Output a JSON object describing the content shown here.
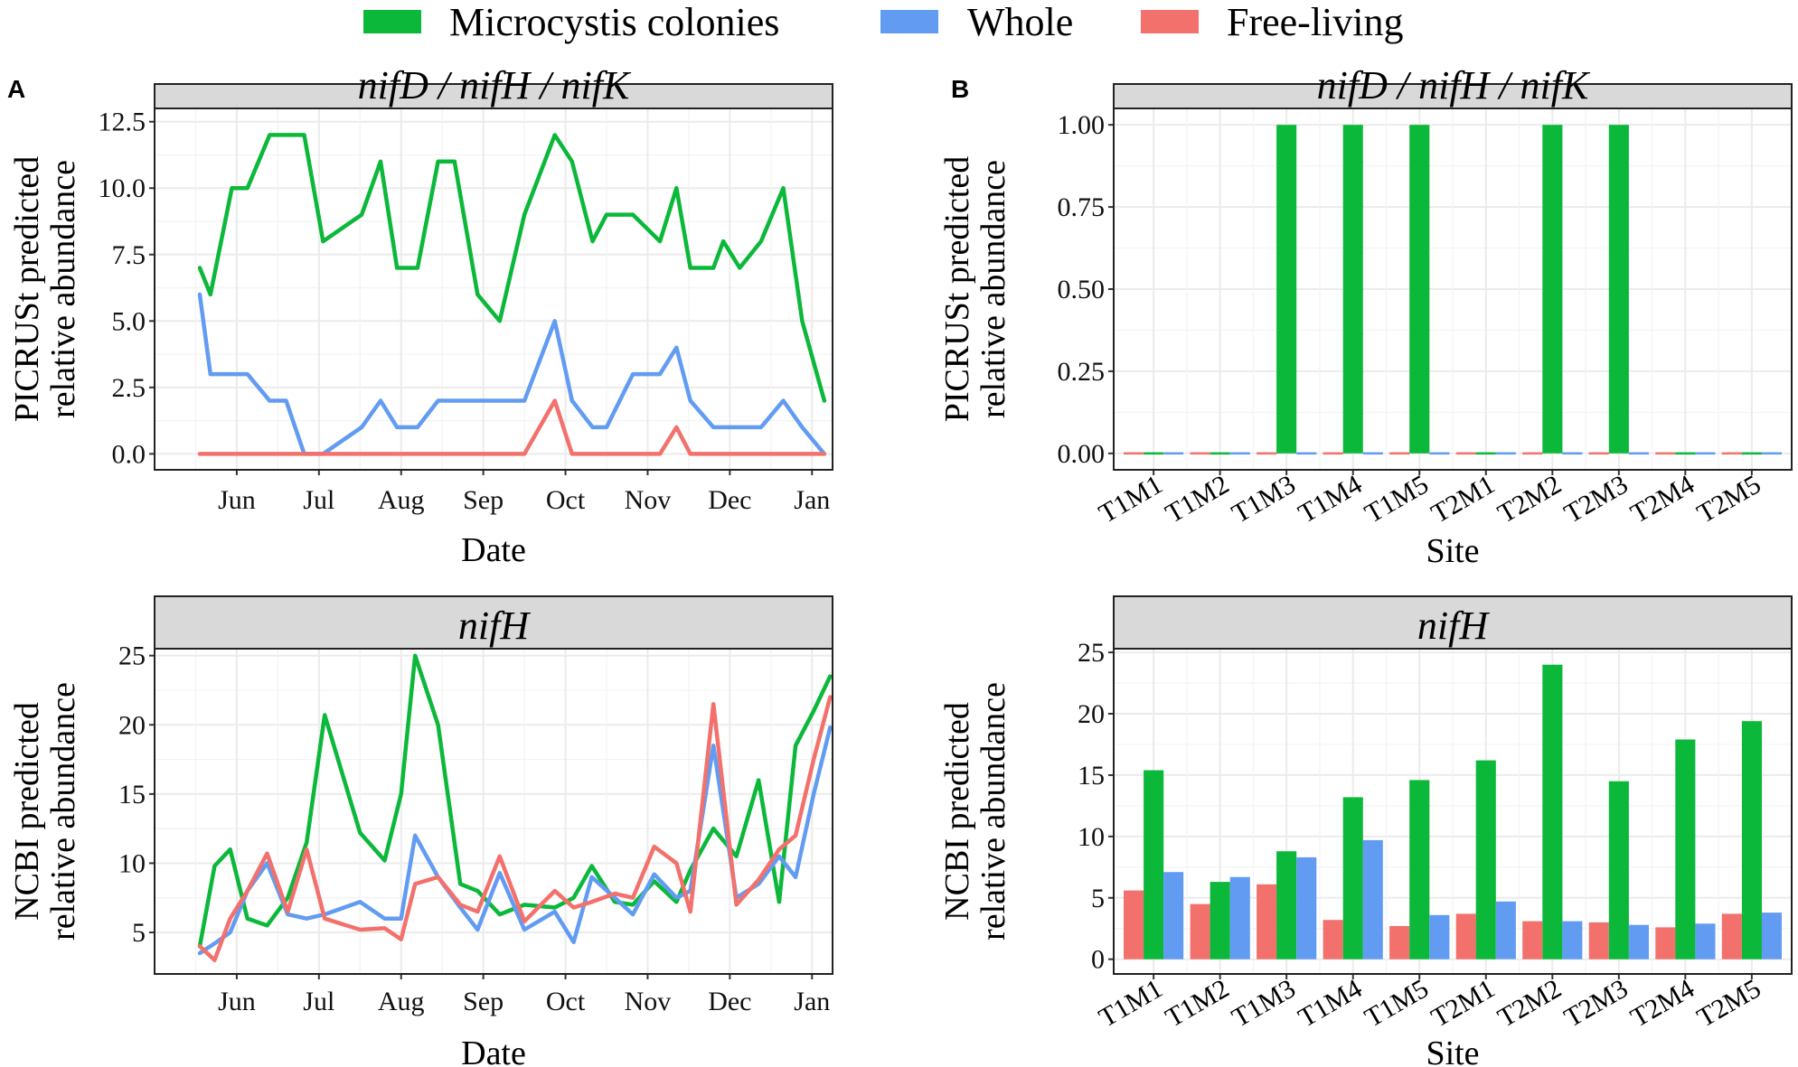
{
  "colors": {
    "colonies": "#0BB83A",
    "whole": "#629CF2",
    "free": "#F2716C",
    "strip_bg": "#D9D9D9",
    "grid": "#EBEBEB"
  },
  "legend": {
    "items": [
      {
        "label": "Microcystis colonies",
        "color": "#0BB83A"
      },
      {
        "label": "Whole",
        "color": "#629CF2"
      },
      {
        "label": "Free-living",
        "color": "#F2716C"
      }
    ]
  },
  "panels": {
    "a_label": "A",
    "b_label": "B"
  },
  "chart_data": [
    {
      "id": "A-top",
      "type": "line",
      "strip_title": "nifD / nifH / nifK",
      "xlabel": "Date",
      "ylabel_lines": [
        "PICRUSt predicted",
        "relative abundance"
      ],
      "ylim": [
        -0.6,
        13.0
      ],
      "yticks": [
        0.0,
        2.5,
        5.0,
        7.5,
        10.0,
        12.5
      ],
      "ytick_labels": [
        "0.0",
        "2.5",
        "5.0",
        "7.5",
        "10.0",
        "12.5"
      ],
      "xlim": [
        0,
        8.25
      ],
      "xticks": [
        {
          "label": "Jun",
          "x": 1
        },
        {
          "label": "Jul",
          "x": 2
        },
        {
          "label": "Aug",
          "x": 3
        },
        {
          "label": "Sep",
          "x": 4
        },
        {
          "label": "Oct",
          "x": 5
        },
        {
          "label": "Nov",
          "x": 6
        },
        {
          "label": "Dec",
          "x": 7
        },
        {
          "label": "Jan",
          "x": 8
        }
      ],
      "series": [
        {
          "name": "Microcystis colonies",
          "color_key": "colonies",
          "x": [
            0.55,
            0.68,
            0.94,
            1.13,
            1.4,
            1.6,
            1.82,
            2.05,
            2.52,
            2.75,
            2.95,
            3.2,
            3.45,
            3.65,
            3.93,
            4.2,
            4.5,
            4.87,
            5.08,
            5.33,
            5.5,
            5.82,
            6.15,
            6.35,
            6.52,
            6.8,
            6.92,
            7.12,
            7.38,
            7.65,
            7.88,
            8.15
          ],
          "y": [
            7,
            6,
            10,
            10,
            12,
            12,
            12,
            8,
            9,
            11,
            7,
            7,
            11,
            11,
            6,
            5,
            9,
            12,
            11,
            8,
            9,
            9,
            8,
            10,
            7,
            7,
            8,
            7,
            8,
            10,
            5,
            2
          ]
        },
        {
          "name": "Whole",
          "color_key": "whole",
          "x": [
            0.55,
            0.68,
            0.94,
            1.13,
            1.4,
            1.6,
            1.82,
            2.05,
            2.52,
            2.75,
            2.95,
            3.2,
            3.45,
            3.65,
            3.93,
            4.2,
            4.5,
            4.87,
            5.08,
            5.33,
            5.5,
            5.82,
            6.15,
            6.35,
            6.52,
            6.8,
            6.92,
            7.12,
            7.38,
            7.65,
            7.88,
            8.15
          ],
          "y": [
            6,
            3,
            3,
            3,
            2,
            2,
            0,
            0,
            1,
            2,
            1,
            1,
            2,
            2,
            2,
            2,
            2,
            5,
            2,
            1,
            1,
            3,
            3,
            4,
            2,
            1,
            1,
            1,
            1,
            2,
            1,
            0
          ]
        },
        {
          "name": "Free-living",
          "color_key": "free",
          "x": [
            0.55,
            0.68,
            0.94,
            1.13,
            1.4,
            1.6,
            1.82,
            2.05,
            2.52,
            2.75,
            2.95,
            3.2,
            3.45,
            3.65,
            3.93,
            4.2,
            4.5,
            4.87,
            5.08,
            5.33,
            5.5,
            5.82,
            6.15,
            6.35,
            6.52,
            6.8,
            6.92,
            7.12,
            7.38,
            7.65,
            7.88,
            8.15
          ],
          "y": [
            0,
            0,
            0,
            0,
            0,
            0,
            0,
            0,
            0,
            0,
            0,
            0,
            0,
            0,
            0,
            0,
            0,
            2,
            0,
            0,
            0,
            0,
            0,
            1,
            0,
            0,
            0,
            0,
            0,
            0,
            0,
            0
          ]
        }
      ]
    },
    {
      "id": "A-bottom",
      "type": "line",
      "strip_title": "nifH",
      "xlabel": "Date",
      "ylabel_lines": [
        "NCBI predicted",
        "relative abundance"
      ],
      "ylim": [
        2.0,
        25.5
      ],
      "yticks": [
        5,
        10,
        15,
        20,
        25
      ],
      "ytick_labels": [
        "5",
        "10",
        "15",
        "20",
        "25"
      ],
      "xlim": [
        0,
        8.25
      ],
      "xticks": [
        {
          "label": "Jun",
          "x": 1
        },
        {
          "label": "Jul",
          "x": 2
        },
        {
          "label": "Aug",
          "x": 3
        },
        {
          "label": "Sep",
          "x": 4
        },
        {
          "label": "Oct",
          "x": 5
        },
        {
          "label": "Nov",
          "x": 6
        },
        {
          "label": "Dec",
          "x": 7
        },
        {
          "label": "Jan",
          "x": 8
        }
      ],
      "series": [
        {
          "name": "Microcystis colonies",
          "color_key": "colonies",
          "x": [
            0.55,
            0.73,
            0.92,
            1.13,
            1.37,
            1.62,
            1.85,
            2.07,
            2.5,
            2.8,
            3.0,
            3.17,
            3.45,
            3.72,
            3.93,
            4.2,
            4.5,
            4.87,
            5.1,
            5.32,
            5.6,
            5.82,
            6.08,
            6.35,
            6.52,
            6.8,
            7.08,
            7.35,
            7.6,
            7.8,
            8.02,
            8.22
          ],
          "y": [
            4,
            9.8,
            11,
            6,
            5.5,
            7.5,
            11.5,
            20.7,
            12.2,
            10.2,
            15,
            25,
            20,
            8.5,
            8,
            6.3,
            7,
            6.8,
            7.5,
            9.8,
            7.2,
            7,
            8.7,
            7.2,
            9.5,
            12.5,
            10.5,
            16,
            7.2,
            18.5,
            21,
            23.5
          ]
        },
        {
          "name": "Whole",
          "color_key": "whole",
          "x": [
            0.55,
            0.73,
            0.92,
            1.13,
            1.37,
            1.62,
            1.85,
            2.07,
            2.5,
            2.8,
            3.0,
            3.17,
            3.45,
            3.72,
            3.93,
            4.2,
            4.5,
            4.87,
            5.1,
            5.32,
            5.6,
            5.82,
            6.08,
            6.35,
            6.52,
            6.8,
            7.08,
            7.35,
            7.6,
            7.8,
            8.02,
            8.22
          ],
          "y": [
            3.5,
            4.2,
            5,
            8,
            10,
            6.3,
            6,
            6.3,
            7.2,
            6,
            6,
            12,
            9,
            6.8,
            5.2,
            9.3,
            5.2,
            6.5,
            4.3,
            9,
            7.5,
            6.3,
            9.2,
            7.5,
            8,
            18.5,
            7.5,
            8.5,
            10.5,
            9,
            15,
            19.8
          ]
        },
        {
          "name": "Free-living",
          "color_key": "free",
          "x": [
            0.55,
            0.73,
            0.92,
            1.13,
            1.37,
            1.62,
            1.85,
            2.07,
            2.5,
            2.8,
            3.0,
            3.17,
            3.45,
            3.72,
            3.93,
            4.2,
            4.5,
            4.87,
            5.1,
            5.32,
            5.6,
            5.82,
            6.08,
            6.35,
            6.52,
            6.8,
            7.08,
            7.35,
            7.6,
            7.8,
            8.02,
            8.22
          ],
          "y": [
            4,
            3,
            6,
            8,
            10.7,
            6.5,
            11,
            6,
            5.2,
            5.3,
            4.5,
            8.5,
            9,
            7,
            6.5,
            10.5,
            5.8,
            8,
            6.8,
            7.2,
            7.8,
            7.5,
            11.2,
            10,
            6.5,
            21.5,
            7,
            8.8,
            11,
            12,
            17.5,
            22
          ]
        }
      ]
    },
    {
      "id": "B-top",
      "type": "bar",
      "strip_title": "nifD / nifH / nifK",
      "xlabel": "Site",
      "ylabel_lines": [
        "PICRUSt predicted",
        "relative abundance"
      ],
      "ylim": [
        -0.05,
        1.05
      ],
      "yticks": [
        0.0,
        0.25,
        0.5,
        0.75,
        1.0
      ],
      "ytick_labels": [
        "0.00",
        "0.25",
        "0.50",
        "0.75",
        "1.00"
      ],
      "categories": [
        "T1M1",
        "T1M2",
        "T1M3",
        "T1M4",
        "T1M5",
        "T2M1",
        "T2M2",
        "T2M3",
        "T2M4",
        "T2M5"
      ],
      "series": [
        {
          "name": "Free-living",
          "color_key": "free",
          "values": [
            0,
            0,
            0,
            0,
            0,
            0,
            0,
            0,
            0,
            0
          ]
        },
        {
          "name": "Microcystis colonies",
          "color_key": "colonies",
          "values": [
            0,
            0,
            1,
            1,
            1,
            0,
            1,
            1,
            0,
            0
          ]
        },
        {
          "name": "Whole",
          "color_key": "whole",
          "values": [
            0,
            0,
            0,
            0,
            0,
            0,
            0,
            0,
            0,
            0
          ]
        }
      ]
    },
    {
      "id": "B-bottom",
      "type": "bar",
      "strip_title": "nifH",
      "xlabel": "Site",
      "ylabel_lines": [
        "NCBI predicted",
        "relative abundance"
      ],
      "ylim": [
        -1.2,
        25.3
      ],
      "yticks": [
        0,
        5,
        10,
        15,
        20,
        25
      ],
      "ytick_labels": [
        "0",
        "5",
        "10",
        "15",
        "20",
        "25"
      ],
      "categories": [
        "T1M1",
        "T1M2",
        "T1M3",
        "T1M4",
        "T1M5",
        "T2M1",
        "T2M2",
        "T2M3",
        "T2M4",
        "T2M5"
      ],
      "series": [
        {
          "name": "Free-living",
          "color_key": "free",
          "values": [
            5.6,
            4.5,
            6.1,
            3.2,
            2.7,
            3.7,
            3.1,
            3.0,
            2.6,
            3.7
          ]
        },
        {
          "name": "Microcystis colonies",
          "color_key": "colonies",
          "values": [
            15.4,
            6.3,
            8.8,
            13.2,
            14.6,
            16.2,
            24.0,
            14.5,
            17.9,
            19.4
          ]
        },
        {
          "name": "Whole",
          "color_key": "whole",
          "values": [
            7.1,
            6.7,
            8.3,
            9.7,
            3.6,
            4.7,
            3.1,
            2.8,
            2.9,
            3.8
          ]
        }
      ]
    }
  ]
}
